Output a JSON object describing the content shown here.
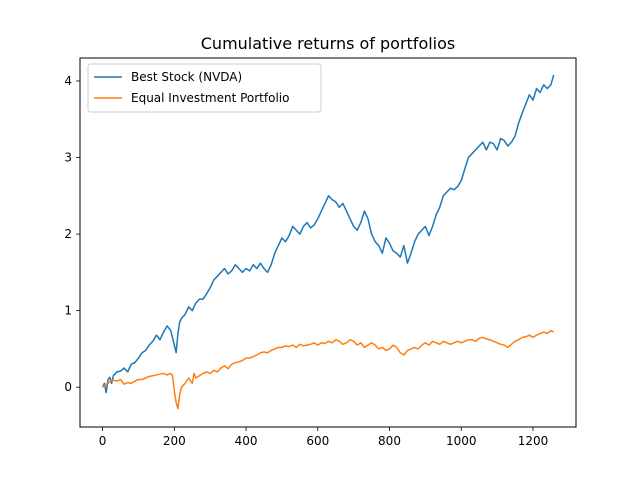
{
  "chart_data": {
    "type": "line",
    "title": "Cumulative returns of portfolios",
    "xlabel": "",
    "ylabel": "",
    "xlim": [
      -63,
      1320
    ],
    "ylim": [
      -0.52,
      4.3
    ],
    "xticks": [
      0,
      200,
      400,
      600,
      800,
      1000,
      1200
    ],
    "yticks": [
      0,
      1,
      2,
      3,
      4
    ],
    "grid": false,
    "legend": "top-left",
    "series": [
      {
        "name": "Best Stock (NVDA)",
        "color": "#1f77b4",
        "x": [
          0,
          5,
          10,
          15,
          20,
          25,
          30,
          40,
          50,
          60,
          70,
          80,
          90,
          100,
          110,
          120,
          130,
          140,
          150,
          160,
          170,
          180,
          190,
          200,
          205,
          210,
          215,
          220,
          230,
          240,
          250,
          260,
          270,
          280,
          290,
          300,
          310,
          320,
          330,
          340,
          350,
          360,
          370,
          380,
          390,
          400,
          410,
          420,
          430,
          440,
          450,
          460,
          470,
          480,
          490,
          500,
          510,
          520,
          530,
          540,
          550,
          560,
          570,
          580,
          590,
          600,
          610,
          620,
          630,
          640,
          650,
          660,
          670,
          680,
          690,
          700,
          710,
          720,
          730,
          740,
          750,
          760,
          770,
          780,
          790,
          800,
          810,
          820,
          830,
          840,
          850,
          860,
          870,
          880,
          890,
          900,
          910,
          920,
          930,
          940,
          950,
          960,
          970,
          980,
          990,
          1000,
          1010,
          1020,
          1030,
          1040,
          1050,
          1060,
          1070,
          1080,
          1090,
          1100,
          1110,
          1120,
          1130,
          1140,
          1150,
          1160,
          1170,
          1180,
          1190,
          1200,
          1210,
          1220,
          1230,
          1240,
          1250,
          1258
        ],
        "y": [
          0.0,
          0.05,
          -0.07,
          0.1,
          0.13,
          0.05,
          0.15,
          0.2,
          0.21,
          0.25,
          0.2,
          0.3,
          0.32,
          0.38,
          0.45,
          0.48,
          0.55,
          0.6,
          0.68,
          0.62,
          0.72,
          0.8,
          0.74,
          0.55,
          0.45,
          0.7,
          0.85,
          0.9,
          0.95,
          1.05,
          1.0,
          1.1,
          1.15,
          1.15,
          1.22,
          1.3,
          1.4,
          1.45,
          1.5,
          1.55,
          1.48,
          1.52,
          1.6,
          1.55,
          1.5,
          1.55,
          1.52,
          1.6,
          1.55,
          1.62,
          1.55,
          1.5,
          1.6,
          1.75,
          1.85,
          1.95,
          1.9,
          1.98,
          2.1,
          2.05,
          2.0,
          2.1,
          2.15,
          2.08,
          2.12,
          2.2,
          2.3,
          2.4,
          2.5,
          2.45,
          2.42,
          2.35,
          2.4,
          2.3,
          2.2,
          2.1,
          2.05,
          2.15,
          2.3,
          2.2,
          2.0,
          1.9,
          1.85,
          1.75,
          1.95,
          1.88,
          1.78,
          1.75,
          1.7,
          1.85,
          1.62,
          1.75,
          1.9,
          2.0,
          2.05,
          2.1,
          1.98,
          2.1,
          2.25,
          2.35,
          2.5,
          2.55,
          2.6,
          2.58,
          2.62,
          2.7,
          2.85,
          3.0,
          3.05,
          3.1,
          3.15,
          3.2,
          3.1,
          3.2,
          3.18,
          3.1,
          3.25,
          3.22,
          3.15,
          3.2,
          3.28,
          3.45,
          3.58,
          3.7,
          3.82,
          3.75,
          3.9,
          3.85,
          3.95,
          3.9,
          3.95,
          4.08
        ]
      },
      {
        "name": "Equal Investment Portfolio",
        "color": "#ff7f0e",
        "x": [
          0,
          5,
          10,
          15,
          20,
          25,
          30,
          40,
          50,
          60,
          70,
          80,
          90,
          100,
          110,
          120,
          130,
          140,
          150,
          160,
          170,
          180,
          190,
          195,
          200,
          205,
          210,
          215,
          220,
          230,
          240,
          250,
          255,
          260,
          270,
          280,
          290,
          300,
          310,
          320,
          330,
          340,
          350,
          360,
          370,
          380,
          390,
          400,
          410,
          420,
          430,
          440,
          450,
          460,
          470,
          480,
          490,
          500,
          510,
          520,
          530,
          540,
          550,
          560,
          570,
          580,
          590,
          600,
          610,
          620,
          630,
          640,
          650,
          660,
          670,
          680,
          690,
          700,
          710,
          720,
          730,
          740,
          750,
          760,
          770,
          780,
          790,
          800,
          810,
          820,
          830,
          840,
          850,
          860,
          870,
          880,
          890,
          900,
          910,
          920,
          930,
          940,
          950,
          960,
          970,
          980,
          990,
          1000,
          1010,
          1020,
          1030,
          1040,
          1050,
          1060,
          1070,
          1080,
          1090,
          1100,
          1110,
          1120,
          1130,
          1140,
          1150,
          1160,
          1170,
          1180,
          1190,
          1200,
          1210,
          1220,
          1230,
          1240,
          1250,
          1258
        ],
        "y": [
          0.0,
          0.02,
          0.04,
          0.05,
          0.07,
          0.08,
          0.09,
          0.08,
          0.1,
          0.04,
          0.06,
          0.05,
          0.08,
          0.1,
          0.1,
          0.12,
          0.14,
          0.15,
          0.16,
          0.17,
          0.18,
          0.16,
          0.18,
          0.15,
          -0.05,
          -0.2,
          -0.28,
          -0.1,
          0.0,
          0.05,
          0.12,
          0.05,
          0.18,
          0.12,
          0.15,
          0.18,
          0.2,
          0.18,
          0.22,
          0.2,
          0.25,
          0.28,
          0.24,
          0.3,
          0.32,
          0.33,
          0.35,
          0.38,
          0.38,
          0.4,
          0.42,
          0.45,
          0.46,
          0.45,
          0.48,
          0.5,
          0.52,
          0.52,
          0.54,
          0.53,
          0.55,
          0.52,
          0.56,
          0.54,
          0.55,
          0.56,
          0.58,
          0.55,
          0.58,
          0.57,
          0.6,
          0.58,
          0.62,
          0.6,
          0.56,
          0.58,
          0.62,
          0.6,
          0.55,
          0.58,
          0.52,
          0.55,
          0.58,
          0.55,
          0.5,
          0.52,
          0.48,
          0.5,
          0.55,
          0.52,
          0.45,
          0.42,
          0.48,
          0.5,
          0.52,
          0.5,
          0.55,
          0.58,
          0.55,
          0.6,
          0.58,
          0.56,
          0.6,
          0.58,
          0.56,
          0.58,
          0.6,
          0.58,
          0.6,
          0.62,
          0.62,
          0.6,
          0.64,
          0.65,
          0.63,
          0.62,
          0.6,
          0.58,
          0.56,
          0.55,
          0.52,
          0.56,
          0.6,
          0.62,
          0.65,
          0.66,
          0.68,
          0.65,
          0.68,
          0.7,
          0.72,
          0.7,
          0.74,
          0.72
        ]
      }
    ]
  }
}
